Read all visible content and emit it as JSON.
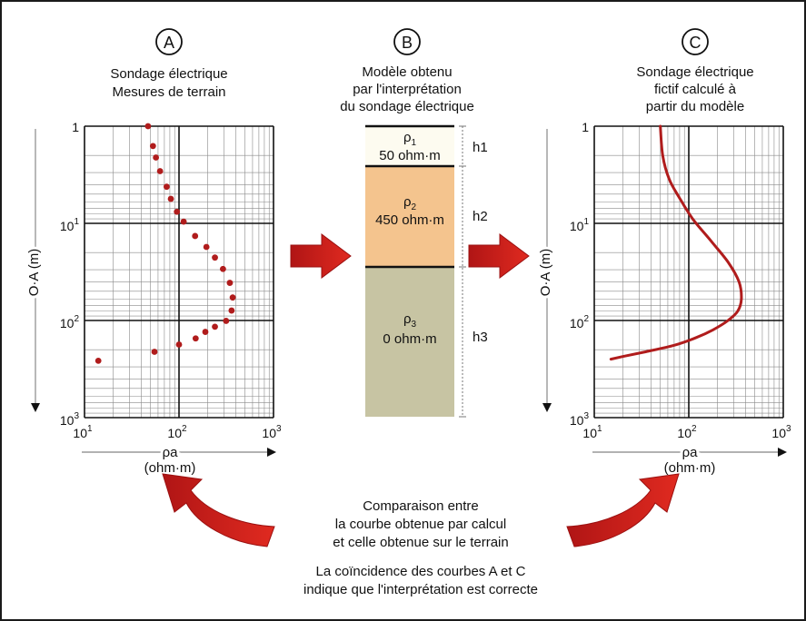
{
  "panel_a": {
    "letter": "A",
    "title_line1": "Sondage électrique",
    "title_line2": "Mesures de terrain",
    "y_axis_label": "O·A (m)",
    "x_axis_label": "ρa",
    "x_axis_unit": "(ohm·m)"
  },
  "panel_b": {
    "letter": "B",
    "title_line1": "Modèle obtenu",
    "title_line2": "par l'interprétation",
    "title_line3": "du sondage électrique",
    "layers": [
      {
        "rho": "ρ",
        "sub": "1",
        "value": "50 ohm·m",
        "thickness_label": "h1",
        "color": "#fdfbf0"
      },
      {
        "rho": "ρ",
        "sub": "2",
        "value": "450 ohm·m",
        "thickness_label": "h2",
        "color": "#f4c48e"
      },
      {
        "rho": "ρ",
        "sub": "3",
        "value": "0 ohm·m",
        "thickness_label": "h3",
        "color": "#c7c4a3"
      }
    ]
  },
  "panel_c": {
    "letter": "C",
    "title_line1": "Sondage électrique",
    "title_line2": "fictif calculé à",
    "title_line3": "partir du modèle",
    "y_axis_label": "O·A (m)",
    "x_axis_label": "ρa",
    "x_axis_unit": "(ohm·m)"
  },
  "axis_ticks": {
    "y_ticks": [
      {
        "base": "1",
        "exp": ""
      },
      {
        "base": "10",
        "exp": "1"
      },
      {
        "base": "10",
        "exp": "2"
      },
      {
        "base": "10",
        "exp": "3"
      }
    ],
    "x_ticks": [
      {
        "base": "10",
        "exp": "1"
      },
      {
        "base": "10",
        "exp": "2"
      },
      {
        "base": "10",
        "exp": "3"
      }
    ]
  },
  "comparison": {
    "line1": "Comparaison entre",
    "line2": "la courbe obtenue par calcul",
    "line3": "et celle obtenue sur le terrain",
    "line4": "La coïncidence des courbes A et C",
    "line5": "indique que l'interprétation est correcte"
  },
  "chart_data": [
    {
      "type": "scatter",
      "title": "Sondage électrique — Mesures de terrain",
      "xlabel": "ρa (ohm·m)",
      "ylabel": "O·A (m)",
      "x_scale": "log",
      "y_scale": "log",
      "y_inverted": true,
      "xlim": [
        10,
        1000
      ],
      "ylim": [
        1,
        1000
      ],
      "grid": true,
      "series": [
        {
          "color": "#b01c1c",
          "points": [
            {
              "x": 47,
              "y": 1.0
            },
            {
              "x": 53,
              "y": 1.6
            },
            {
              "x": 57,
              "y": 2.1
            },
            {
              "x": 63,
              "y": 2.9
            },
            {
              "x": 74,
              "y": 4.2
            },
            {
              "x": 82,
              "y": 5.6
            },
            {
              "x": 95,
              "y": 7.6
            },
            {
              "x": 112,
              "y": 9.6
            },
            {
              "x": 148,
              "y": 13.5
            },
            {
              "x": 195,
              "y": 17.5
            },
            {
              "x": 240,
              "y": 22.5
            },
            {
              "x": 292,
              "y": 29.5
            },
            {
              "x": 345,
              "y": 41.0
            },
            {
              "x": 370,
              "y": 58.0
            },
            {
              "x": 360,
              "y": 79.0
            },
            {
              "x": 315,
              "y": 101.0
            },
            {
              "x": 240,
              "y": 116.0
            },
            {
              "x": 190,
              "y": 131.0
            },
            {
              "x": 150,
              "y": 153.0
            },
            {
              "x": 100,
              "y": 177.0
            },
            {
              "x": 55,
              "y": 210.0
            },
            {
              "x": 14,
              "y": 260.0
            }
          ]
        }
      ]
    },
    {
      "type": "line",
      "title": "Sondage électrique fictif calculé à partir du modèle",
      "xlabel": "ρa (ohm·m)",
      "ylabel": "O·A (m)",
      "x_scale": "log",
      "y_scale": "log",
      "y_inverted": true,
      "xlim": [
        10,
        1000
      ],
      "ylim": [
        1,
        1000
      ],
      "grid": true,
      "series": [
        {
          "color": "#b01c1c",
          "points": [
            {
              "x": 50,
              "y": 1.0
            },
            {
              "x": 53,
              "y": 2.0
            },
            {
              "x": 62,
              "y": 3.5
            },
            {
              "x": 80,
              "y": 5.5
            },
            {
              "x": 110,
              "y": 9.0
            },
            {
              "x": 170,
              "y": 15.0
            },
            {
              "x": 260,
              "y": 25.0
            },
            {
              "x": 340,
              "y": 40.0
            },
            {
              "x": 360,
              "y": 60.0
            },
            {
              "x": 330,
              "y": 80.0
            },
            {
              "x": 260,
              "y": 100.0
            },
            {
              "x": 180,
              "y": 125.0
            },
            {
              "x": 120,
              "y": 150.0
            },
            {
              "x": 70,
              "y": 180.0
            },
            {
              "x": 35,
              "y": 210.0
            },
            {
              "x": 20,
              "y": 235.0
            },
            {
              "x": 15,
              "y": 250.0
            }
          ]
        }
      ]
    }
  ]
}
